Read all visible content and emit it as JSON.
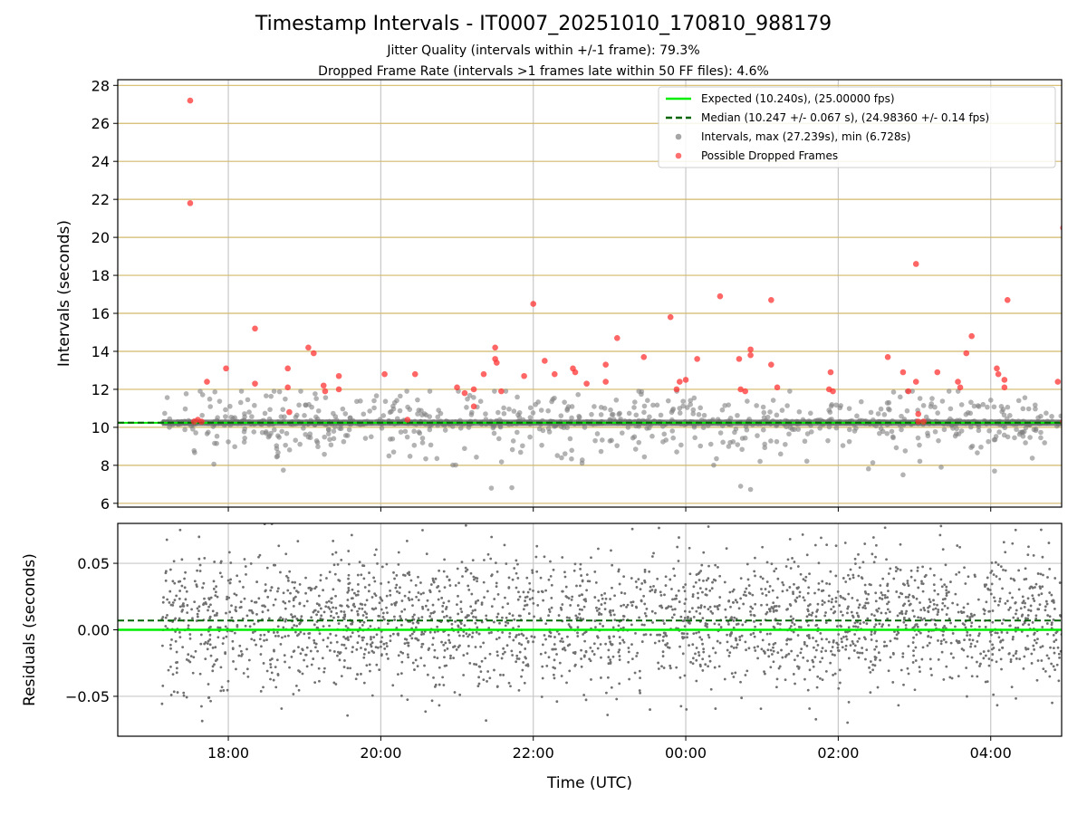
{
  "chart_data": [
    {
      "type": "scatter",
      "title": "Timestamp Intervals - IT0007_20251010_170810_988179",
      "subtitle_lines": [
        "Jitter Quality (intervals within +/-1 frame): 79.3%",
        "Dropped Frame Rate (intervals >1 frames late within 50 FF files): 4.6%"
      ],
      "xlabel": "",
      "ylabel": "Intervals (seconds)",
      "xlim_hours": [
        16.55,
        28.93
      ],
      "ylim": [
        5.8,
        28.3
      ],
      "yticks": [
        6,
        8,
        10,
        12,
        14,
        16,
        18,
        20,
        22,
        24,
        26,
        28
      ],
      "ytick_labels": [
        "6",
        "8",
        "10",
        "12",
        "14",
        "16",
        "18",
        "20",
        "22",
        "24",
        "26",
        "28"
      ],
      "xticks_hours": [
        18,
        20,
        22,
        24,
        26,
        28
      ],
      "grid": true,
      "legend_position": "top-right",
      "expected_interval": 10.24,
      "median_interval": 10.247,
      "legend": [
        {
          "label": "Expected (10.240s), (25.00000 fps)",
          "style": "solid",
          "color": "#00ee00"
        },
        {
          "label": "Median (10.247 +/- 0.067 s), (24.98360 +/- 0.14 fps)",
          "style": "dashed",
          "color": "#006400"
        },
        {
          "label": "Intervals, max (27.239s), min (6.728s)",
          "style": "marker",
          "color": "#808080"
        },
        {
          "label": "Possible Dropped Frames",
          "style": "marker",
          "color": "#ff3333"
        }
      ],
      "intervals_stats": {
        "max": 27.239,
        "min": 6.728,
        "start_hour": 17.13,
        "end_hour": 28.93
      },
      "dropped_frames": [
        {
          "x": 17.5,
          "y": 27.2
        },
        {
          "x": 17.5,
          "y": 21.8
        },
        {
          "x": 17.55,
          "y": 10.3
        },
        {
          "x": 17.6,
          "y": 10.4
        },
        {
          "x": 17.65,
          "y": 10.3
        },
        {
          "x": 17.72,
          "y": 12.4
        },
        {
          "x": 17.97,
          "y": 13.1
        },
        {
          "x": 18.35,
          "y": 15.2
        },
        {
          "x": 18.35,
          "y": 12.3
        },
        {
          "x": 18.78,
          "y": 13.1
        },
        {
          "x": 18.78,
          "y": 12.1
        },
        {
          "x": 18.8,
          "y": 10.8
        },
        {
          "x": 19.05,
          "y": 14.2
        },
        {
          "x": 19.12,
          "y": 13.9
        },
        {
          "x": 19.25,
          "y": 12.2
        },
        {
          "x": 19.27,
          "y": 11.9
        },
        {
          "x": 19.45,
          "y": 12.7
        },
        {
          "x": 19.45,
          "y": 12.0
        },
        {
          "x": 20.05,
          "y": 12.8
        },
        {
          "x": 20.35,
          "y": 10.4
        },
        {
          "x": 20.45,
          "y": 12.8
        },
        {
          "x": 21.0,
          "y": 12.1
        },
        {
          "x": 21.1,
          "y": 11.8
        },
        {
          "x": 21.22,
          "y": 12.0
        },
        {
          "x": 21.22,
          "y": 11.1
        },
        {
          "x": 21.35,
          "y": 12.8
        },
        {
          "x": 21.5,
          "y": 14.2
        },
        {
          "x": 21.5,
          "y": 13.6
        },
        {
          "x": 21.52,
          "y": 13.4
        },
        {
          "x": 21.58,
          "y": 11.9
        },
        {
          "x": 21.88,
          "y": 12.7
        },
        {
          "x": 22.0,
          "y": 16.5
        },
        {
          "x": 22.15,
          "y": 13.5
        },
        {
          "x": 22.28,
          "y": 12.8
        },
        {
          "x": 22.52,
          "y": 13.1
        },
        {
          "x": 22.55,
          "y": 12.9
        },
        {
          "x": 22.7,
          "y": 12.3
        },
        {
          "x": 22.95,
          "y": 13.3
        },
        {
          "x": 22.95,
          "y": 12.4
        },
        {
          "x": 23.1,
          "y": 14.7
        },
        {
          "x": 23.45,
          "y": 13.7
        },
        {
          "x": 23.8,
          "y": 15.8
        },
        {
          "x": 23.88,
          "y": 12.0
        },
        {
          "x": 23.92,
          "y": 12.4
        },
        {
          "x": 24.0,
          "y": 12.5
        },
        {
          "x": 24.15,
          "y": 13.6
        },
        {
          "x": 24.45,
          "y": 16.9
        },
        {
          "x": 24.7,
          "y": 13.6
        },
        {
          "x": 24.72,
          "y": 12.0
        },
        {
          "x": 24.78,
          "y": 11.9
        },
        {
          "x": 24.85,
          "y": 14.1
        },
        {
          "x": 24.85,
          "y": 13.8
        },
        {
          "x": 25.12,
          "y": 16.7
        },
        {
          "x": 25.12,
          "y": 13.3
        },
        {
          "x": 25.2,
          "y": 12.1
        },
        {
          "x": 25.9,
          "y": 12.9
        },
        {
          "x": 25.88,
          "y": 12.0
        },
        {
          "x": 25.93,
          "y": 11.9
        },
        {
          "x": 26.65,
          "y": 13.7
        },
        {
          "x": 26.85,
          "y": 12.9
        },
        {
          "x": 26.92,
          "y": 11.9
        },
        {
          "x": 27.02,
          "y": 18.6
        },
        {
          "x": 27.02,
          "y": 12.4
        },
        {
          "x": 27.05,
          "y": 10.7
        },
        {
          "x": 27.05,
          "y": 10.3
        },
        {
          "x": 27.12,
          "y": 10.3
        },
        {
          "x": 27.3,
          "y": 12.9
        },
        {
          "x": 27.57,
          "y": 12.4
        },
        {
          "x": 27.6,
          "y": 12.1
        },
        {
          "x": 27.68,
          "y": 13.9
        },
        {
          "x": 27.75,
          "y": 14.8
        },
        {
          "x": 28.08,
          "y": 13.1
        },
        {
          "x": 28.1,
          "y": 12.8
        },
        {
          "x": 28.18,
          "y": 12.5
        },
        {
          "x": 28.18,
          "y": 12.1
        },
        {
          "x": 28.22,
          "y": 16.7
        },
        {
          "x": 28.88,
          "y": 12.4
        },
        {
          "x": 28.95,
          "y": 20.5
        },
        {
          "x": 28.95,
          "y": 10.3
        }
      ]
    },
    {
      "type": "scatter",
      "xlabel": "Time (UTC)",
      "ylabel": "Residuals (seconds)",
      "xlim_hours": [
        16.55,
        28.93
      ],
      "ylim": [
        -0.08,
        0.08
      ],
      "yticks": [
        -0.05,
        0,
        0.05
      ],
      "ytick_labels": [
        "−0.05",
        "0.00",
        "0.05"
      ],
      "xticks_hours": [
        18,
        20,
        22,
        24,
        26,
        28
      ],
      "xtick_labels": [
        "18:00",
        "20:00",
        "22:00",
        "00:00",
        "02:00",
        "04:00"
      ],
      "grid": true,
      "expected_residual": 0.0,
      "median_residual": 0.007,
      "residual_std": 0.025,
      "start_hour": 17.13,
      "end_hour": 28.93
    }
  ]
}
